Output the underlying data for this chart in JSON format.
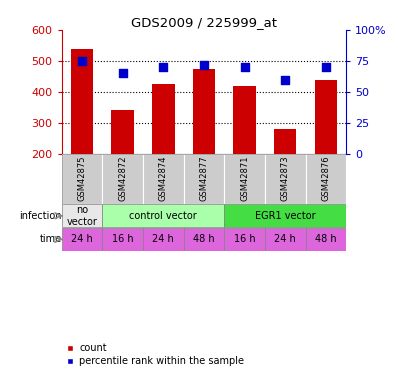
{
  "title": "GDS2009 / 225999_at",
  "samples": [
    "GSM42875",
    "GSM42872",
    "GSM42874",
    "GSM42877",
    "GSM42871",
    "GSM42873",
    "GSM42876"
  ],
  "counts": [
    540,
    342,
    425,
    475,
    420,
    280,
    440
  ],
  "percentiles": [
    75,
    65,
    70,
    72,
    70,
    60,
    70
  ],
  "ylim_left": [
    200,
    600
  ],
  "ylim_right": [
    0,
    100
  ],
  "yticks_left": [
    200,
    300,
    400,
    500,
    600
  ],
  "yticks_right": [
    0,
    25,
    50,
    75,
    100
  ],
  "bar_color": "#cc0000",
  "dot_color": "#0000cc",
  "infection_groups": [
    {
      "label": "no\nvector",
      "start": 0,
      "end": 1,
      "color": "#e8e8e8"
    },
    {
      "label": "control vector",
      "start": 1,
      "end": 4,
      "color": "#aaffaa"
    },
    {
      "label": "EGR1 vector",
      "start": 4,
      "end": 7,
      "color": "#44dd44"
    }
  ],
  "time_labels": [
    "24 h",
    "16 h",
    "24 h",
    "48 h",
    "16 h",
    "24 h",
    "48 h"
  ],
  "time_color": "#dd66dd",
  "sample_bg_color": "#cccccc",
  "legend_count_color": "#cc0000",
  "legend_pct_color": "#0000cc",
  "infection_label": "infection",
  "time_label": "time",
  "grid_color": "black",
  "grid_style": "dotted",
  "grid_lw": 0.8
}
